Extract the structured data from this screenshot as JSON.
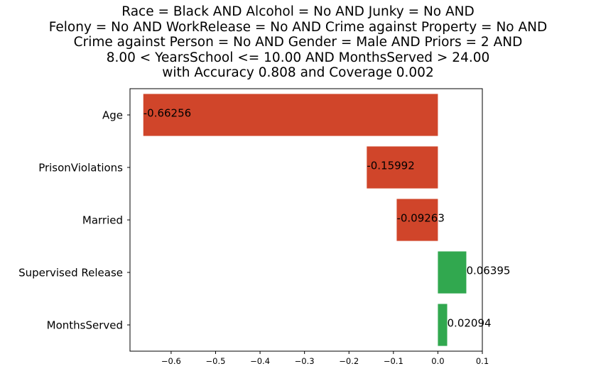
{
  "chart_data": {
    "type": "bar",
    "orientation": "horizontal",
    "title_lines": [
      "Race = Black AND Alcohol = No AND Junky = No AND",
      "Felony = No AND WorkRelease = No AND Crime against Property = No AND",
      "Crime against Person = No AND Gender = Male AND Priors = 2 AND",
      "8.00 < YearsSchool <= 10.00 AND MonthsServed > 24.00",
      "with Accuracy 0.808 and Coverage 0.002"
    ],
    "categories": [
      "Age",
      "PrisonViolations",
      "Married",
      "Supervised Release",
      "MonthsServed"
    ],
    "values": [
      -0.66256,
      -0.15992,
      -0.09263,
      0.06395,
      0.02094
    ],
    "value_labels": [
      "-0.66256",
      "-0.15992",
      "-0.09263",
      "0.06395",
      "0.02094"
    ],
    "xlim": [
      -0.6925,
      0.1
    ],
    "xticks": [
      -0.6,
      -0.5,
      -0.4,
      -0.3,
      -0.2,
      -0.1,
      0.0,
      0.1
    ],
    "xtick_labels": [
      "−0.6",
      "−0.5",
      "−0.4",
      "−0.3",
      "−0.2",
      "−0.1",
      "0.0",
      "0.1"
    ],
    "colors": {
      "negative": "#d0452a",
      "positive": "#31a84f"
    },
    "grid": false,
    "legend": "none"
  }
}
